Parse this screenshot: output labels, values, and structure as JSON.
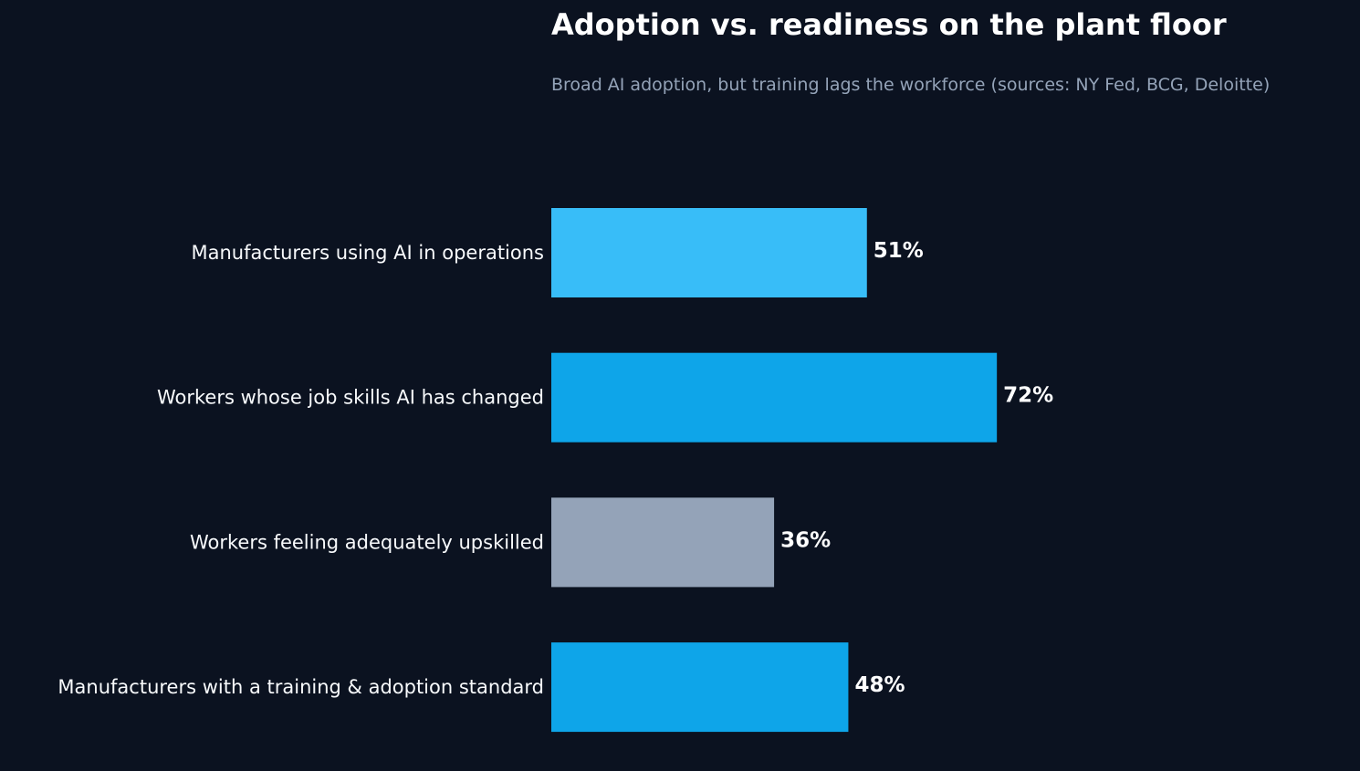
{
  "chart_data": {
    "type": "bar",
    "orientation": "horizontal",
    "title": "Adoption vs. readiness on the plant floor",
    "subtitle": "Broad AI adoption, but training lags the workforce (sources: NY Fed, BCG, Deloitte)",
    "categories": [
      "Manufacturers using AI in operations",
      "Workers whose job skills AI has changed",
      "Workers feeling adequately upskilled",
      "Manufacturers with a training & adoption standard"
    ],
    "values": [
      51,
      72,
      36,
      48
    ],
    "value_labels": [
      "51%",
      "72%",
      "36%",
      "48%"
    ],
    "bar_colors": [
      "#38bdf8",
      "#0ea5e9",
      "#94a3b8",
      "#0ea5e9"
    ],
    "xlim": [
      0,
      130
    ],
    "grid": false,
    "background": "#0b1220"
  }
}
